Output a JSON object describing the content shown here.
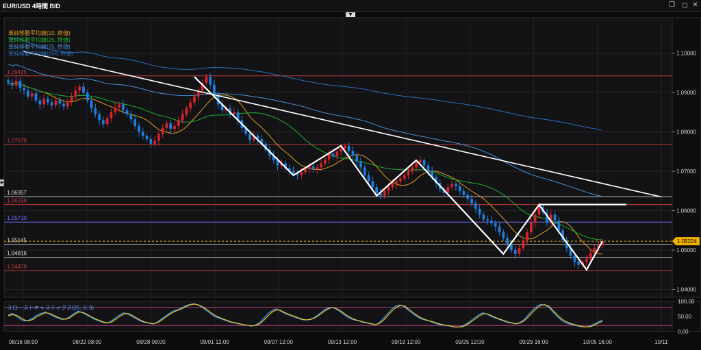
{
  "window": {
    "title": "EUR/USD 4時間 BID",
    "restore_icon": "restore-icon",
    "close_icon": "close-icon"
  },
  "colors": {
    "up": "#d9232b",
    "down": "#1e7fe0",
    "sma10": "#e0a020",
    "sma25": "#20b030",
    "sma75": "#4a8fd0",
    "sma200": "#2a6fb8",
    "hline_red": "#c23b3b",
    "hline_gray": "#bdbdbd",
    "hline_blue": "#7070ff",
    "pattern": "#ffffff",
    "trendline": "#ffffff",
    "current": "#f0b000",
    "stoch_k": "#3fa0ff",
    "stoch_d": "#e8c020",
    "stoch_ref": "#c04080"
  },
  "chart_data": [
    {
      "type": "candlestick",
      "title": "EUR/USD 4時間 BID",
      "legend": [
        {
          "label": "単純移動平均線(10, 終値)",
          "color": "#e0a020"
        },
        {
          "label": "単純移動平均線(25, 終値)",
          "color": "#20b030"
        },
        {
          "label": "単純移動平均線(75, 終値)",
          "color": "#4a8fd0"
        },
        {
          "label": "単純移動平均線(200, 終値)",
          "color": "#2a6fb8"
        }
      ],
      "legend_position": "top-left",
      "ylim": [
        1.038,
        1.109
      ],
      "yticks": [
        "1.10000",
        "1.09000",
        "1.08000",
        "1.07000",
        "1.06000",
        "1.05000",
        "1.04000"
      ],
      "x_labels": [
        "08/16 08:00",
        "08/22 08:00",
        "08/28 08:00",
        "09/01 12:00",
        "09/07 12:00",
        "09/13 12:00",
        "09/19 12:00",
        "09/25 12:00",
        "09/29 16:00",
        "10/05 16:00",
        "10/11"
      ],
      "current_price": "1.05224",
      "horizontal_levels": [
        {
          "value": 1.09425,
          "label": "1.09425",
          "color": "red"
        },
        {
          "value": 1.07678,
          "label": "1.07678",
          "color": "red"
        },
        {
          "value": 1.06357,
          "label": "1.06357",
          "color": "gray"
        },
        {
          "value": 1.06156,
          "label": "1.06156",
          "color": "red"
        },
        {
          "value": 1.0571,
          "label": "1.05710",
          "color": "blue"
        },
        {
          "value": 1.05145,
          "label": "1.05145",
          "color": "gray"
        },
        {
          "value": 1.04816,
          "label": "1.04816",
          "color": "gray"
        },
        {
          "value": 1.04478,
          "label": "1.04478",
          "color": "red"
        }
      ],
      "closes": [
        1.0925,
        1.0918,
        1.093,
        1.0912,
        1.0905,
        1.089,
        1.0898,
        1.088,
        1.087,
        1.0885,
        1.0875,
        1.0868,
        1.088,
        1.0872,
        1.0865,
        1.0878,
        1.089,
        1.0905,
        1.0915,
        1.09,
        1.088,
        1.086,
        1.0845,
        1.083,
        1.082,
        1.0835,
        1.085,
        1.0862,
        1.087,
        1.0855,
        1.0845,
        1.0832,
        1.0815,
        1.08,
        1.079,
        1.0782,
        1.077,
        1.0778,
        1.0795,
        1.081,
        1.0822,
        1.0808,
        1.0815,
        1.083,
        1.0845,
        1.086,
        1.0875,
        1.089,
        1.0905,
        1.0925,
        1.094,
        1.092,
        1.0895,
        1.087,
        1.0855,
        1.086,
        1.0845,
        1.085,
        1.083,
        1.081,
        1.0795,
        1.078,
        1.079,
        1.0782,
        1.077,
        1.0755,
        1.074,
        1.0728,
        1.0715,
        1.072,
        1.0708,
        1.0702,
        1.0695,
        1.069,
        1.0698,
        1.0706,
        1.0712,
        1.0705,
        1.071,
        1.072,
        1.073,
        1.0745,
        1.0738,
        1.075,
        1.0758,
        1.0765,
        1.0752,
        1.074,
        1.0725,
        1.071,
        1.069,
        1.0675,
        1.066,
        1.0645,
        1.0638,
        1.065,
        1.066,
        1.0668,
        1.0675,
        1.0682,
        1.069,
        1.07,
        1.071,
        1.0722,
        1.0728,
        1.0715,
        1.07,
        1.0685,
        1.067,
        1.0655,
        1.0645,
        1.066,
        1.0668,
        1.0662,
        1.065,
        1.064,
        1.063,
        1.0618,
        1.0605,
        1.059,
        1.0578,
        1.0575,
        1.0568,
        1.056,
        1.0545,
        1.053,
        1.0515,
        1.05,
        1.049,
        1.0505,
        1.0525,
        1.0545,
        1.057,
        1.059,
        1.061,
        1.0595,
        1.057,
        1.059,
        1.0575,
        1.055,
        1.0525,
        1.0505,
        1.0485,
        1.047,
        1.0462,
        1.047,
        1.0478,
        1.0492,
        1.0505,
        1.0512,
        1.0522
      ],
      "sma_note": "moving averages drawn from closes",
      "trendline": {
        "from": {
          "x": "08/16 08:00",
          "y": 1.1005
        },
        "to": {
          "x": "10/11",
          "y": 1.0635
        }
      },
      "pattern_line": [
        1.094,
        1.069,
        1.0765,
        1.0638,
        1.0728,
        1.049,
        1.0615,
        1.045,
        1.05224
      ]
    },
    {
      "type": "line",
      "title": "スローストキャスティクス(25, 3, 3)",
      "ylim": [
        0,
        100
      ],
      "yticks": [
        "100.00",
        "50.00",
        "0.00"
      ],
      "reference_lines": [
        80,
        20
      ],
      "series": [
        {
          "name": "%K",
          "values": [
            55,
            60,
            50,
            40,
            35,
            38,
            45,
            55,
            60,
            65,
            58,
            50,
            45,
            40,
            42,
            50,
            60,
            68,
            62,
            55,
            48,
            40,
            35,
            30,
            28,
            35,
            45,
            55,
            62,
            58,
            50,
            42,
            35,
            30,
            28,
            25,
            30,
            40,
            50,
            60,
            68,
            72,
            78,
            85,
            90,
            92,
            88,
            80,
            70,
            60,
            50,
            45,
            40,
            35,
            30,
            28,
            25,
            22,
            20,
            18,
            22,
            30,
            45,
            60,
            70,
            75,
            68,
            60,
            55,
            50,
            45,
            40,
            38,
            40,
            45,
            55,
            65,
            75,
            80,
            78,
            70,
            60,
            50,
            42,
            38,
            35,
            30,
            28,
            25,
            22,
            30,
            45,
            60,
            75,
            85,
            88,
            82,
            70,
            60,
            50,
            42,
            38,
            35,
            30,
            25,
            22,
            20,
            18,
            15,
            14,
            18,
            25,
            35,
            45,
            55,
            62,
            58,
            50,
            45,
            40,
            35,
            30,
            28,
            25,
            30,
            40,
            55,
            70,
            82,
            90,
            88,
            80,
            65,
            50,
            38,
            30,
            25,
            22,
            18,
            16,
            15,
            18,
            25,
            32,
            38
          ]
        },
        {
          "name": "%D",
          "values": [
            52,
            56,
            54,
            46,
            38,
            36,
            40,
            50,
            56,
            62,
            60,
            54,
            48,
            42,
            41,
            46,
            56,
            64,
            64,
            58,
            50,
            43,
            37,
            32,
            29,
            31,
            40,
            50,
            58,
            60,
            54,
            46,
            38,
            32,
            29,
            26,
            28,
            36,
            46,
            56,
            64,
            70,
            75,
            82,
            88,
            91,
            89,
            83,
            74,
            64,
            54,
            48,
            42,
            37,
            32,
            29,
            26,
            23,
            21,
            19,
            20,
            26,
            38,
            52,
            65,
            72,
            70,
            63,
            57,
            52,
            47,
            42,
            39,
            39,
            43,
            51,
            61,
            71,
            78,
            79,
            73,
            64,
            54,
            46,
            40,
            36,
            32,
            29,
            26,
            23,
            27,
            38,
            53,
            68,
            80,
            86,
            85,
            75,
            64,
            54,
            46,
            40,
            36,
            32,
            27,
            24,
            21,
            19,
            16,
            15,
            16,
            21,
            30,
            40,
            50,
            58,
            59,
            53,
            47,
            42,
            37,
            32,
            29,
            26,
            28,
            35,
            48,
            63,
            76,
            86,
            89,
            84,
            70,
            56,
            43,
            34,
            28,
            24,
            20,
            17,
            15,
            16,
            21,
            28,
            34
          ]
        }
      ]
    }
  ]
}
